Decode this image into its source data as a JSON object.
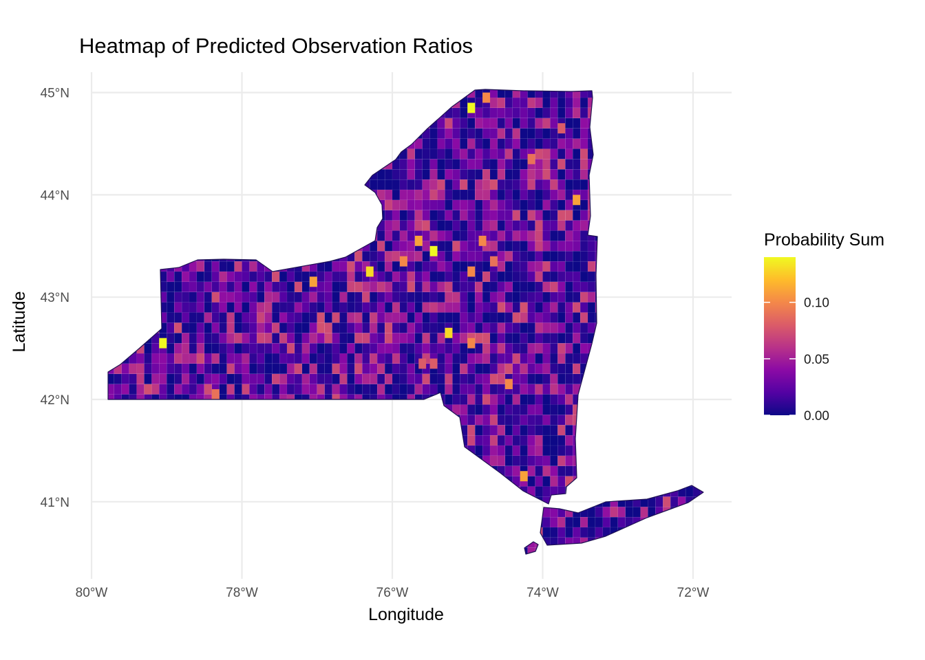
{
  "chart_data": {
    "type": "heatmap",
    "title": "Heatmap of Predicted Observation Ratios",
    "xlabel": "Longitude",
    "ylabel": "Latitude",
    "xlim": [
      -80,
      -71.5
    ],
    "ylim": [
      40.4,
      45.2
    ],
    "x_ticks": [
      {
        "value": -80,
        "label": "80°W"
      },
      {
        "value": -78,
        "label": "78°W"
      },
      {
        "value": -76,
        "label": "76°W"
      },
      {
        "value": -74,
        "label": "74°W"
      },
      {
        "value": -72,
        "label": "72°W"
      }
    ],
    "y_ticks": [
      {
        "value": 41,
        "label": "41°N"
      },
      {
        "value": 42,
        "label": "42°N"
      },
      {
        "value": 43,
        "label": "43°N"
      },
      {
        "value": 44,
        "label": "44°N"
      },
      {
        "value": 45,
        "label": "45°N"
      }
    ],
    "grid": true,
    "legend": {
      "title": "Probability Sum",
      "position": "right",
      "colormap": "plasma",
      "range": [
        0,
        0.14
      ],
      "ticks": [
        {
          "value": 0.0,
          "label": "0.00"
        },
        {
          "value": 0.05,
          "label": "0.05"
        },
        {
          "value": 0.1,
          "label": "0.10"
        }
      ],
      "colors": [
        "#0d0887",
        "#5302a3",
        "#8b0aa5",
        "#b83289",
        "#db5c68",
        "#f48849",
        "#febc2a",
        "#f0f921"
      ]
    },
    "cell_size_degrees": 0.1,
    "typical_value": 0.02,
    "high_value_cells": [
      {
        "lon": -74.95,
        "lat": 44.85,
        "value": 0.14
      },
      {
        "lon": -75.45,
        "lat": 43.45,
        "value": 0.14
      },
      {
        "lon": -76.3,
        "lat": 43.25,
        "value": 0.13
      },
      {
        "lon": -79.05,
        "lat": 42.55,
        "value": 0.14
      },
      {
        "lon": -75.25,
        "lat": 42.65,
        "value": 0.13
      },
      {
        "lon": -74.25,
        "lat": 41.25,
        "value": 0.11
      },
      {
        "lon": -73.55,
        "lat": 43.95,
        "value": 0.11
      },
      {
        "lon": -77.05,
        "lat": 43.15,
        "value": 0.11
      },
      {
        "lon": -74.75,
        "lat": 44.95,
        "value": 0.1
      },
      {
        "lon": -75.65,
        "lat": 43.55,
        "value": 0.11
      },
      {
        "lon": -74.95,
        "lat": 42.55,
        "value": 0.1
      },
      {
        "lon": -74.95,
        "lat": 43.25,
        "value": 0.1
      },
      {
        "lon": -74.45,
        "lat": 42.15,
        "value": 0.1
      },
      {
        "lon": -74.8,
        "lat": 43.55,
        "value": 0.1
      },
      {
        "lon": -74.65,
        "lat": 43.35,
        "value": 0.09
      },
      {
        "lon": -75.85,
        "lat": 43.35,
        "value": 0.1
      },
      {
        "lon": -78.35,
        "lat": 42.05,
        "value": 0.09
      },
      {
        "lon": -74.15,
        "lat": 44.35,
        "value": 0.09
      },
      {
        "lon": -73.75,
        "lat": 44.65,
        "value": 0.08
      },
      {
        "lon": -75.6,
        "lat": 42.35,
        "value": 0.08
      },
      {
        "lon": -75.45,
        "lat": 42.35,
        "value": 0.08
      }
    ]
  }
}
